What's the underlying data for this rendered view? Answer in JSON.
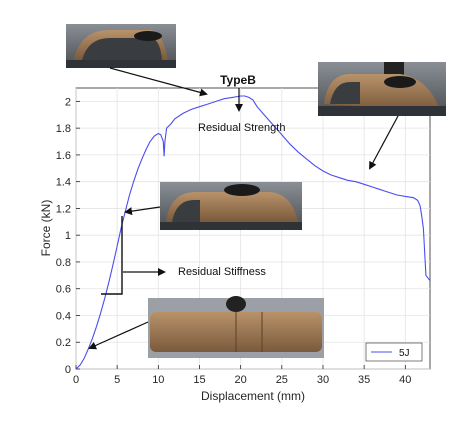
{
  "chart_data": {
    "type": "line",
    "title": "",
    "xlabel": "Displacement (mm)",
    "ylabel": "Force (kN)",
    "xlim": [
      0,
      43
    ],
    "ylim": [
      0,
      2.1
    ],
    "x_ticks": [
      0,
      5,
      10,
      15,
      20,
      25,
      30,
      35,
      40
    ],
    "y_ticks": [
      0,
      0.2,
      0.4,
      0.6,
      0.8,
      1,
      1.2,
      1.4,
      1.6,
      1.8,
      2
    ],
    "grid": true,
    "legend_position": "bottom-right",
    "series": [
      {
        "name": "5J",
        "color": "#4a4ef0",
        "x": [
          0,
          0.5,
          1,
          1.5,
          2,
          2.5,
          3,
          3.5,
          4,
          4.5,
          5,
          5.5,
          6,
          6.5,
          7,
          7.5,
          8,
          8.5,
          9,
          9.5,
          10,
          10.3,
          10.6,
          10.7,
          10.8,
          11,
          11.5,
          12,
          13,
          14,
          15,
          16,
          17,
          18,
          19,
          20,
          20.5,
          21,
          21.5,
          22,
          23,
          24,
          25,
          26,
          27,
          28,
          29,
          30,
          31,
          32,
          33,
          34,
          35,
          36,
          37,
          38,
          39,
          40,
          41,
          41.5,
          41.8,
          42,
          42.2,
          42.5,
          43
        ],
        "y": [
          0,
          0.03,
          0.08,
          0.15,
          0.23,
          0.32,
          0.42,
          0.53,
          0.65,
          0.78,
          0.92,
          1.06,
          1.18,
          1.3,
          1.4,
          1.49,
          1.57,
          1.64,
          1.7,
          1.74,
          1.76,
          1.75,
          1.7,
          1.59,
          1.7,
          1.8,
          1.83,
          1.87,
          1.91,
          1.94,
          1.96,
          1.98,
          2.0,
          2.02,
          2.03,
          2.04,
          2.04,
          2.03,
          2.01,
          1.96,
          1.89,
          1.82,
          1.75,
          1.68,
          1.62,
          1.57,
          1.52,
          1.48,
          1.45,
          1.43,
          1.41,
          1.4,
          1.38,
          1.36,
          1.34,
          1.32,
          1.3,
          1.29,
          1.28,
          1.26,
          1.22,
          1.14,
          1.05,
          0.7,
          0.66
        ]
      }
    ],
    "annotations": [
      {
        "id": "typeb",
        "text": "TypeB"
      },
      {
        "id": "residual_strength",
        "text": "Residual Strength"
      },
      {
        "id": "residual_stiffness",
        "text": "Residual Stiffness"
      }
    ]
  }
}
